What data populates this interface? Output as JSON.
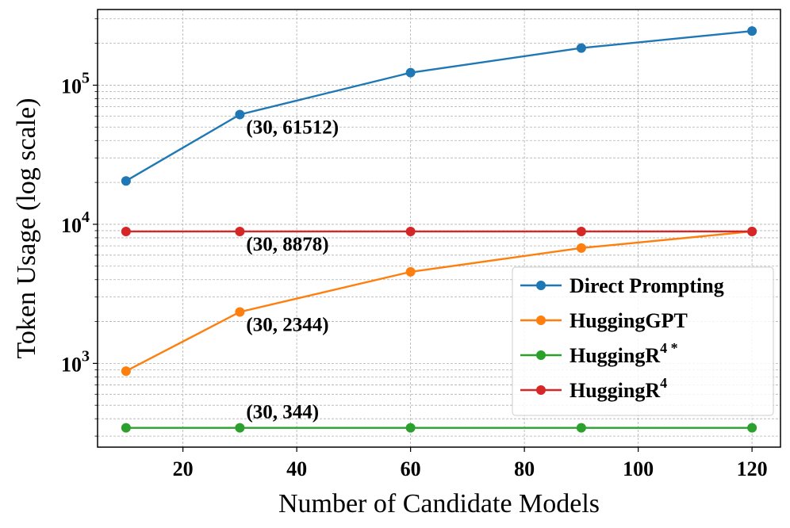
{
  "chart_data": {
    "type": "line",
    "xlabel": "Number of Candidate Models",
    "ylabel": "Token Usage (log scale)",
    "yscale": "log",
    "xlim": [
      5,
      125
    ],
    "ylim": [
      250,
      350000
    ],
    "grid": true,
    "legend_position": "lower-right",
    "x": [
      10,
      30,
      60,
      90,
      120
    ],
    "x_ticks": [
      "20",
      "40",
      "60",
      "80",
      "100",
      "120"
    ],
    "y_ticks": [
      {
        "base": "10",
        "exp": "3",
        "value": 1000
      },
      {
        "base": "10",
        "exp": "4",
        "value": 10000
      },
      {
        "base": "10",
        "exp": "5",
        "value": 100000
      }
    ],
    "series": [
      {
        "name": "Direct Prompting",
        "name_main": "Direct Prompting",
        "name_sup": "",
        "color": "#1f77b4",
        "values": [
          20500,
          61512,
          123000,
          185000,
          245000
        ]
      },
      {
        "name": "HuggingGPT",
        "name_main": "HuggingGPT",
        "name_sup": "",
        "color": "#ff7f0e",
        "values": [
          880,
          2344,
          4550,
          6750,
          8878
        ]
      },
      {
        "name": "HuggingR4*",
        "name_main": "HuggingR",
        "name_sup": "4 *",
        "color": "#2ca02c",
        "values": [
          344,
          344,
          344,
          344,
          344
        ]
      },
      {
        "name": "HuggingR4",
        "name_main": "HuggingR",
        "name_sup": "4",
        "color": "#d62728",
        "values": [
          8878,
          8878,
          8878,
          8878,
          8878
        ]
      }
    ],
    "annotations": [
      {
        "text": "(30, 61512)",
        "x": 30,
        "y": 61512
      },
      {
        "text": "(30, 8878)",
        "x": 30,
        "y": 8878
      },
      {
        "text": "(30, 2344)",
        "x": 30,
        "y": 2344
      },
      {
        "text": "(30, 344)",
        "x": 30,
        "y": 344
      }
    ]
  }
}
